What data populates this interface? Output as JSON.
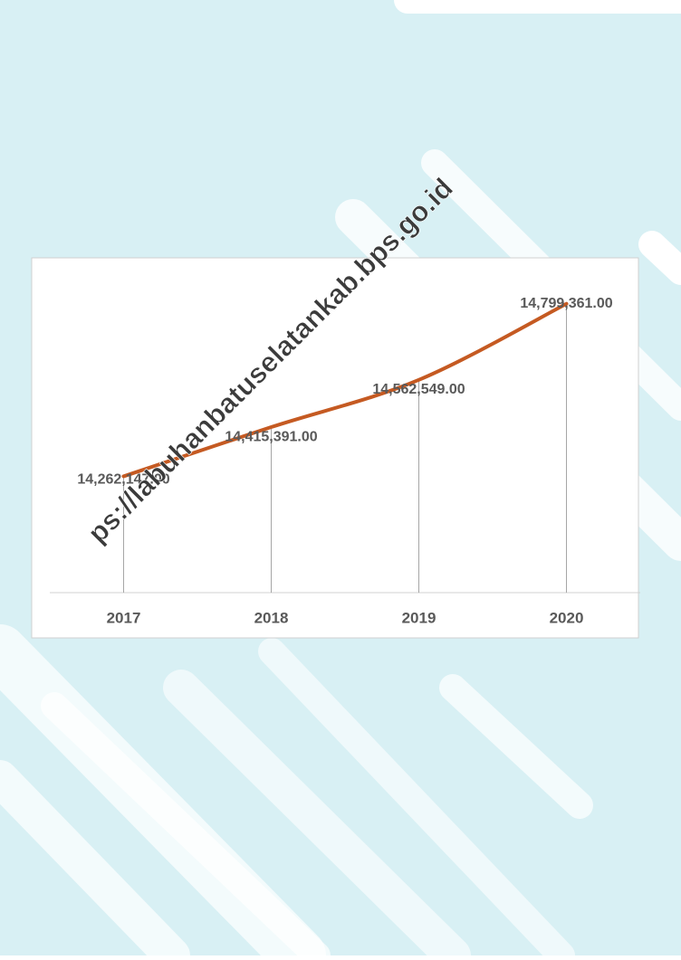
{
  "chart_data": {
    "type": "line",
    "categories": [
      "2017",
      "2018",
      "2019",
      "2020"
    ],
    "series": [
      {
        "color": "#c55a22",
        "values": [
          14262147,
          14415391,
          14562549,
          14799361
        ],
        "value_labels": [
          "14,262,147.00",
          "14,415,391.00",
          "14,562,549.00",
          "14,799,361.00"
        ]
      }
    ],
    "ylim": [
      13900000,
      14900000
    ],
    "drop_lines": true
  },
  "watermark": "ps://labuhanbatuselatankab.bps.go.id"
}
